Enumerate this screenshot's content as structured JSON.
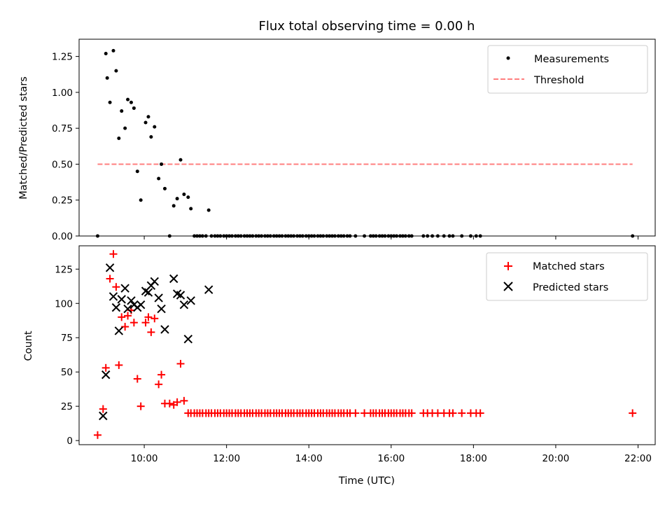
{
  "chart_data": [
    {
      "type": "scatter",
      "title": "Flux total observing time = 0.00 h",
      "xlabel": "",
      "ylabel": "Matched/Predicted stars",
      "xlim": [
        "08:25",
        "22:25"
      ],
      "ylim": [
        0,
        1.37
      ],
      "yticks": [
        "0.00",
        "0.25",
        "0.50",
        "0.75",
        "1.00",
        "1.25"
      ],
      "yticks_values": [
        0,
        0.25,
        0.5,
        0.75,
        1.0,
        1.25
      ],
      "legend_position": "top-right",
      "series": [
        {
          "name": "Measurements",
          "marker": "dot",
          "color": "#000000",
          "points": [
            [
              "08:52",
              0.0
            ],
            [
              "09:04",
              1.27
            ],
            [
              "09:06",
              1.1
            ],
            [
              "09:10",
              0.93
            ],
            [
              "09:15",
              1.29
            ],
            [
              "09:19",
              1.15
            ],
            [
              "09:23",
              0.68
            ],
            [
              "09:27",
              0.87
            ],
            [
              "09:32",
              0.75
            ],
            [
              "09:36",
              0.95
            ],
            [
              "09:41",
              0.93
            ],
            [
              "09:45",
              0.89
            ],
            [
              "09:50",
              0.45
            ],
            [
              "09:55",
              0.25
            ],
            [
              "10:02",
              0.79
            ],
            [
              "10:06",
              0.83
            ],
            [
              "10:10",
              0.69
            ],
            [
              "10:15",
              0.76
            ],
            [
              "10:21",
              0.4
            ],
            [
              "10:25",
              0.5
            ],
            [
              "10:30",
              0.33
            ],
            [
              "10:37",
              0.0
            ],
            [
              "10:43",
              0.21
            ],
            [
              "10:48",
              0.26
            ],
            [
              "10:53",
              0.53
            ],
            [
              "10:58",
              0.29
            ],
            [
              "11:04",
              0.27
            ],
            [
              "11:08",
              0.19
            ],
            [
              "11:13",
              0.0
            ],
            [
              "11:17",
              0.0
            ],
            [
              "11:21",
              0.0
            ],
            [
              "11:25",
              0.0
            ],
            [
              "11:30",
              0.0
            ],
            [
              "11:34",
              0.18
            ],
            [
              "11:38",
              0.0
            ],
            [
              "11:43",
              0.0
            ],
            [
              "11:47",
              0.0
            ],
            [
              "11:51",
              0.0
            ],
            [
              "11:56",
              0.0
            ],
            [
              "12:00",
              0.0
            ],
            [
              "12:04",
              0.0
            ],
            [
              "12:08",
              0.0
            ],
            [
              "12:13",
              0.0
            ],
            [
              "12:17",
              0.0
            ],
            [
              "12:21",
              0.0
            ],
            [
              "12:26",
              0.0
            ],
            [
              "12:30",
              0.0
            ],
            [
              "12:34",
              0.0
            ],
            [
              "12:38",
              0.0
            ],
            [
              "12:43",
              0.0
            ],
            [
              "12:47",
              0.0
            ],
            [
              "12:51",
              0.0
            ],
            [
              "12:56",
              0.0
            ],
            [
              "13:00",
              0.0
            ],
            [
              "13:04",
              0.0
            ],
            [
              "13:09",
              0.0
            ],
            [
              "13:13",
              0.0
            ],
            [
              "13:17",
              0.0
            ],
            [
              "13:21",
              0.0
            ],
            [
              "13:26",
              0.0
            ],
            [
              "13:30",
              0.0
            ],
            [
              "13:34",
              0.0
            ],
            [
              "13:38",
              0.0
            ],
            [
              "13:43",
              0.0
            ],
            [
              "13:47",
              0.0
            ],
            [
              "13:51",
              0.0
            ],
            [
              "13:56",
              0.0
            ],
            [
              "14:00",
              0.0
            ],
            [
              "14:04",
              0.0
            ],
            [
              "14:08",
              0.0
            ],
            [
              "14:13",
              0.0
            ],
            [
              "14:17",
              0.0
            ],
            [
              "14:21",
              0.0
            ],
            [
              "14:26",
              0.0
            ],
            [
              "14:30",
              0.0
            ],
            [
              "14:34",
              0.0
            ],
            [
              "14:38",
              0.0
            ],
            [
              "14:43",
              0.0
            ],
            [
              "14:47",
              0.0
            ],
            [
              "14:51",
              0.0
            ],
            [
              "14:56",
              0.0
            ],
            [
              "15:00",
              0.0
            ],
            [
              "15:08",
              0.0
            ],
            [
              "15:21",
              0.0
            ],
            [
              "15:30",
              0.0
            ],
            [
              "15:34",
              0.0
            ],
            [
              "15:38",
              0.0
            ],
            [
              "15:43",
              0.0
            ],
            [
              "15:47",
              0.0
            ],
            [
              "15:51",
              0.0
            ],
            [
              "15:56",
              0.0
            ],
            [
              "16:00",
              0.0
            ],
            [
              "16:04",
              0.0
            ],
            [
              "16:08",
              0.0
            ],
            [
              "16:13",
              0.0
            ],
            [
              "16:17",
              0.0
            ],
            [
              "16:21",
              0.0
            ],
            [
              "16:26",
              0.0
            ],
            [
              "16:30",
              0.0
            ],
            [
              "16:47",
              0.0
            ],
            [
              "16:53",
              0.0
            ],
            [
              "17:00",
              0.0
            ],
            [
              "17:08",
              0.0
            ],
            [
              "17:17",
              0.0
            ],
            [
              "17:25",
              0.0
            ],
            [
              "17:30",
              0.0
            ],
            [
              "17:43",
              0.0
            ],
            [
              "17:56",
              0.0
            ],
            [
              "18:04",
              0.0
            ],
            [
              "18:10",
              0.0
            ],
            [
              "21:52",
              0.0
            ]
          ]
        },
        {
          "name": "Threshold",
          "style": "dashed-line",
          "color": "#ff7f7f",
          "points": [
            [
              "08:52",
              0.5
            ],
            [
              "21:52",
              0.5
            ]
          ]
        }
      ]
    },
    {
      "type": "scatter",
      "title": "",
      "xlabel": "Time (UTC)",
      "ylabel": "Count",
      "xlim": [
        "08:25",
        "22:25"
      ],
      "ylim": [
        -3,
        142
      ],
      "xticks": [
        "10:00",
        "12:00",
        "14:00",
        "16:00",
        "18:00",
        "20:00",
        "22:00"
      ],
      "yticks": [
        "0",
        "25",
        "50",
        "75",
        "100",
        "125"
      ],
      "yticks_values": [
        0,
        25,
        50,
        75,
        100,
        125
      ],
      "legend_position": "top-right",
      "series": [
        {
          "name": "Matched stars",
          "marker": "plus",
          "color": "#ff0000",
          "points": [
            [
              "08:52",
              4
            ],
            [
              "09:00",
              23
            ],
            [
              "09:04",
              53
            ],
            [
              "09:10",
              118
            ],
            [
              "09:15",
              136
            ],
            [
              "09:19",
              112
            ],
            [
              "09:23",
              55
            ],
            [
              "09:27",
              90
            ],
            [
              "09:32",
              83
            ],
            [
              "09:36",
              91
            ],
            [
              "09:41",
              95
            ],
            [
              "09:45",
              86
            ],
            [
              "09:50",
              45
            ],
            [
              "09:55",
              25
            ],
            [
              "10:02",
              86
            ],
            [
              "10:06",
              90
            ],
            [
              "10:10",
              79
            ],
            [
              "10:15",
              89
            ],
            [
              "10:21",
              41
            ],
            [
              "10:25",
              48
            ],
            [
              "10:30",
              27
            ],
            [
              "10:37",
              27
            ],
            [
              "10:43",
              26
            ],
            [
              "10:48",
              28
            ],
            [
              "10:53",
              56
            ],
            [
              "10:58",
              29
            ],
            [
              "11:04",
              20
            ],
            [
              "11:08",
              20
            ],
            [
              "11:13",
              20
            ],
            [
              "11:17",
              20
            ],
            [
              "11:21",
              20
            ],
            [
              "11:25",
              20
            ],
            [
              "11:30",
              20
            ],
            [
              "11:34",
              20
            ],
            [
              "11:38",
              20
            ],
            [
              "11:43",
              20
            ],
            [
              "11:47",
              20
            ],
            [
              "11:51",
              20
            ],
            [
              "11:56",
              20
            ],
            [
              "12:00",
              20
            ],
            [
              "12:04",
              20
            ],
            [
              "12:08",
              20
            ],
            [
              "12:13",
              20
            ],
            [
              "12:17",
              20
            ],
            [
              "12:21",
              20
            ],
            [
              "12:26",
              20
            ],
            [
              "12:30",
              20
            ],
            [
              "12:34",
              20
            ],
            [
              "12:38",
              20
            ],
            [
              "12:43",
              20
            ],
            [
              "12:47",
              20
            ],
            [
              "12:51",
              20
            ],
            [
              "12:56",
              20
            ],
            [
              "13:00",
              20
            ],
            [
              "13:04",
              20
            ],
            [
              "13:09",
              20
            ],
            [
              "13:13",
              20
            ],
            [
              "13:17",
              20
            ],
            [
              "13:21",
              20
            ],
            [
              "13:26",
              20
            ],
            [
              "13:30",
              20
            ],
            [
              "13:34",
              20
            ],
            [
              "13:38",
              20
            ],
            [
              "13:43",
              20
            ],
            [
              "13:47",
              20
            ],
            [
              "13:51",
              20
            ],
            [
              "13:56",
              20
            ],
            [
              "14:00",
              20
            ],
            [
              "14:04",
              20
            ],
            [
              "14:08",
              20
            ],
            [
              "14:13",
              20
            ],
            [
              "14:17",
              20
            ],
            [
              "14:21",
              20
            ],
            [
              "14:26",
              20
            ],
            [
              "14:30",
              20
            ],
            [
              "14:34",
              20
            ],
            [
              "14:38",
              20
            ],
            [
              "14:43",
              20
            ],
            [
              "14:47",
              20
            ],
            [
              "14:51",
              20
            ],
            [
              "14:56",
              20
            ],
            [
              "15:00",
              20
            ],
            [
              "15:08",
              20
            ],
            [
              "15:21",
              20
            ],
            [
              "15:30",
              20
            ],
            [
              "15:34",
              20
            ],
            [
              "15:38",
              20
            ],
            [
              "15:43",
              20
            ],
            [
              "15:47",
              20
            ],
            [
              "15:51",
              20
            ],
            [
              "15:56",
              20
            ],
            [
              "16:00",
              20
            ],
            [
              "16:04",
              20
            ],
            [
              "16:08",
              20
            ],
            [
              "16:13",
              20
            ],
            [
              "16:17",
              20
            ],
            [
              "16:21",
              20
            ],
            [
              "16:26",
              20
            ],
            [
              "16:30",
              20
            ],
            [
              "16:47",
              20
            ],
            [
              "16:53",
              20
            ],
            [
              "17:00",
              20
            ],
            [
              "17:08",
              20
            ],
            [
              "17:17",
              20
            ],
            [
              "17:25",
              20
            ],
            [
              "17:30",
              20
            ],
            [
              "17:43",
              20
            ],
            [
              "17:56",
              20
            ],
            [
              "18:04",
              20
            ],
            [
              "18:10",
              20
            ],
            [
              "21:52",
              20
            ]
          ]
        },
        {
          "name": "Predicted stars",
          "marker": "x",
          "color": "#000000",
          "points": [
            [
              "09:00",
              18
            ],
            [
              "09:04",
              48
            ],
            [
              "09:10",
              126
            ],
            [
              "09:15",
              105
            ],
            [
              "09:19",
              97
            ],
            [
              "09:23",
              80
            ],
            [
              "09:27",
              103
            ],
            [
              "09:32",
              111
            ],
            [
              "09:36",
              96
            ],
            [
              "09:41",
              102
            ],
            [
              "09:45",
              99
            ],
            [
              "09:50",
              97
            ],
            [
              "09:55",
              99
            ],
            [
              "10:02",
              109
            ],
            [
              "10:06",
              108
            ],
            [
              "10:10",
              113
            ],
            [
              "10:15",
              116
            ],
            [
              "10:21",
              104
            ],
            [
              "10:25",
              96
            ],
            [
              "10:30",
              81
            ],
            [
              "10:43",
              118
            ],
            [
              "10:48",
              107
            ],
            [
              "10:53",
              106
            ],
            [
              "10:58",
              99
            ],
            [
              "11:04",
              74
            ],
            [
              "11:08",
              102
            ],
            [
              "11:34",
              110
            ]
          ]
        }
      ]
    }
  ]
}
